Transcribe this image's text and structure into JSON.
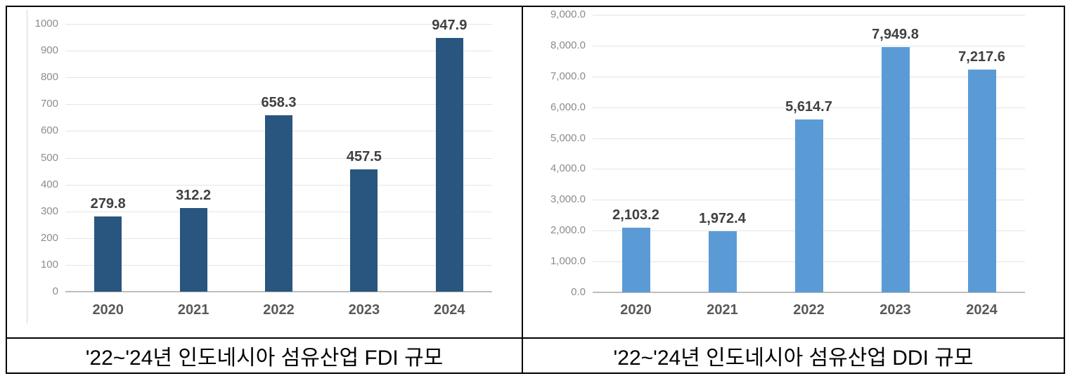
{
  "page": {
    "background": "#ffffff",
    "table_border_color": "#000000"
  },
  "styles": {
    "gridline_color": "#e4e4e4",
    "axis_line_color": "#bdbdbd",
    "tick_label_color": "#8c8c8c",
    "category_label_color": "#595959",
    "value_label_color": "#404040",
    "caption_color": "#000000"
  },
  "chart_data": [
    {
      "type": "bar",
      "title": "'22~'24년 인도네시아 섬유산업 FDI 규모",
      "categories": [
        "2020",
        "2021",
        "2022",
        "2023",
        "2024"
      ],
      "values": [
        279.8,
        312.2,
        658.3,
        457.5,
        947.9
      ],
      "value_labels": [
        "279.8",
        "312.2",
        "658.3",
        "457.5",
        "947.9"
      ],
      "xlabel": "",
      "ylabel": "",
      "ylim": [
        0,
        1000
      ],
      "ytick_step": 100,
      "ytick_labels": [
        "0",
        "100",
        "200",
        "300",
        "400",
        "500",
        "600",
        "700",
        "800",
        "900",
        "1000"
      ],
      "bar_color": "#28567e",
      "grid": true,
      "legend": "none"
    },
    {
      "type": "bar",
      "title": "'22~'24년 인도네시아 섬유산업 DDI 규모",
      "categories": [
        "2020",
        "2021",
        "2022",
        "2023",
        "2024"
      ],
      "values": [
        2103.2,
        1972.4,
        5614.7,
        7949.8,
        7217.6
      ],
      "value_labels": [
        "2,103.2",
        "1,972.4",
        "5,614.7",
        "7,949.8",
        "7,217.6"
      ],
      "xlabel": "",
      "ylabel": "",
      "ylim": [
        0,
        9000
      ],
      "ytick_step": 1000,
      "ytick_labels": [
        "0.0",
        "1,000.0",
        "2,000.0",
        "3,000.0",
        "4,000.0",
        "5,000.0",
        "6,000.0",
        "7,000.0",
        "8,000.0",
        "9,000.0"
      ],
      "bar_color": "#5b9bd5",
      "grid": true,
      "legend": "none"
    }
  ]
}
